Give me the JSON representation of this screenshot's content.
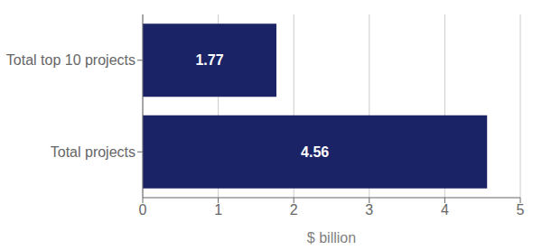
{
  "chart_data": {
    "type": "bar",
    "orientation": "horizontal",
    "categories": [
      "Total projects",
      "Total top 10 projects"
    ],
    "values": [
      4.56,
      1.77
    ],
    "color": "#1a2366",
    "xlabel": "$ billion",
    "xlim": [
      0,
      5
    ],
    "xticks": [
      0,
      1,
      2,
      3,
      4,
      5
    ],
    "grid": true,
    "data_labels": true
  }
}
